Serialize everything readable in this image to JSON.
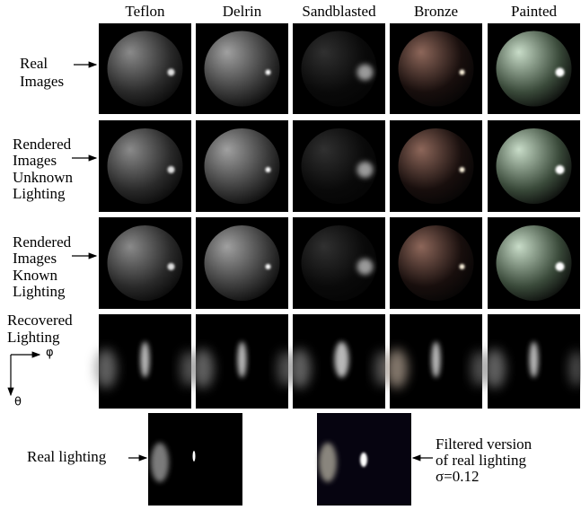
{
  "columns": [
    "Teflon",
    "Delrin",
    "Sandblasted",
    "Bronze",
    "Painted"
  ],
  "row_labels": [
    [
      "Real",
      "Images"
    ],
    [
      "Rendered",
      "Images",
      "Unknown",
      "Lighting"
    ],
    [
      "Rendered",
      "Images",
      "Known",
      "Lighting"
    ],
    [
      "Recovered",
      "Lighting"
    ]
  ],
  "axes": {
    "phi": "φ",
    "theta": "θ"
  },
  "bottom": {
    "left_label": "Real lighting",
    "right_label": [
      "Filtered version",
      "of real lighting",
      "σ=0.12"
    ]
  }
}
